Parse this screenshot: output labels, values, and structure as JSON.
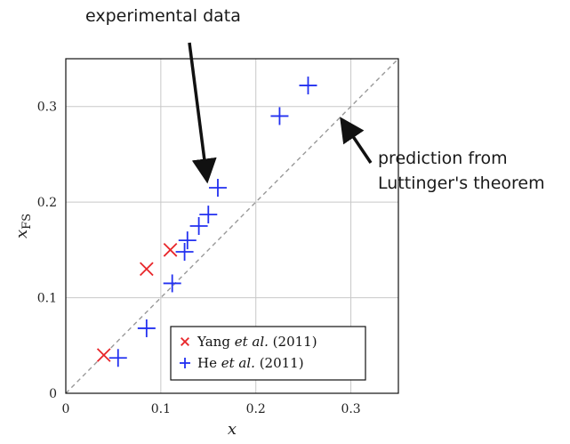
{
  "annotations": {
    "experimental": "experimental data",
    "prediction_line1": "prediction from",
    "prediction_line2": "Luttinger's theorem"
  },
  "chart_data": {
    "type": "scatter",
    "xlabel": "x",
    "ylabel_main": "x",
    "ylabel_sub": "FS",
    "xlim": [
      0,
      0.35
    ],
    "ylim": [
      0,
      0.35
    ],
    "xticks": [
      0,
      0.1,
      0.2,
      0.3
    ],
    "yticks": [
      0,
      0.1,
      0.2,
      0.3
    ],
    "xtick_labels": [
      "0",
      "0.1",
      "0.2",
      "0.3"
    ],
    "ytick_labels": [
      "0",
      "0.1",
      "0.2",
      "0.3"
    ],
    "grid": true,
    "reference_line": {
      "style": "dashed",
      "slope": 1,
      "intercept": 0
    },
    "legend_position": "bottom-right",
    "series": [
      {
        "name_prefix": "Yang ",
        "name_italic": "et al.",
        "name_suffix": " (2011)",
        "marker": "x",
        "color": "#e8262a",
        "x": [
          0.04,
          0.085,
          0.11
        ],
        "y": [
          0.04,
          0.13,
          0.15
        ]
      },
      {
        "name_prefix": "He ",
        "name_italic": "et al.",
        "name_suffix": " (2011)",
        "marker": "+",
        "color": "#2230f0",
        "x": [
          0.055,
          0.085,
          0.112,
          0.125,
          0.128,
          0.14,
          0.15,
          0.16,
          0.225,
          0.255
        ],
        "y": [
          0.037,
          0.068,
          0.115,
          0.148,
          0.16,
          0.175,
          0.187,
          0.215,
          0.29,
          0.322
        ]
      }
    ]
  }
}
